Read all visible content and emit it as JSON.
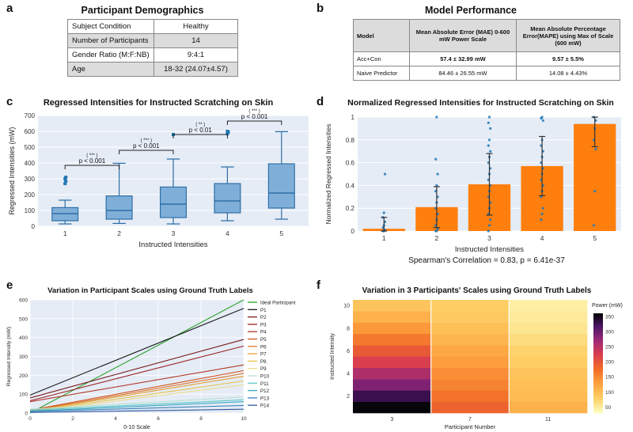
{
  "panels": {
    "a": "a",
    "b": "b",
    "c": "c",
    "d": "d",
    "e": "e",
    "f": "f"
  },
  "demographics": {
    "title": "Participant Demographics",
    "rows": [
      [
        "Subject Condition",
        "Healthy"
      ],
      [
        "Number of Participants",
        "14"
      ],
      [
        "Gender Ratio (M:F:NB)",
        "9:4:1"
      ],
      [
        "Age",
        "18-32 (24.07±4.57)"
      ]
    ]
  },
  "performance": {
    "title": "Model Performance",
    "headers": [
      "Model",
      "Mean Absolute Error (MAE) 0-600 mW Power Scale",
      "Mean Absolute Percentage Error(MAPE) using Max of Scale (600 mW)"
    ],
    "rows": [
      [
        "Acc+Con",
        "57.4 ± 32.99 mW",
        "9.57 ± 5.5%"
      ],
      [
        "Naive Predictor",
        "84.46 ± 26.55 mW",
        "14.08 ± 4.43%"
      ]
    ]
  },
  "spearman": "Spearman's Correlation = 0.83, p = 6.41e-37",
  "colors": {
    "plot_bg": "#e5ecf6",
    "box_fill": "#7fafd8",
    "box_line": "#2f6fa7",
    "orange": "#ff7f0e",
    "flier": "#1f77b4"
  },
  "chart_data": [
    {
      "id": "c",
      "type": "box",
      "title": "Regressed Intensities for Instructed Scratching on Skin",
      "xlabel": "Instructed Intensities",
      "ylabel": "Regressed Intensities (mW)",
      "categories": [
        "1",
        "2",
        "3",
        "4",
        "5"
      ],
      "ylim": [
        0,
        700
      ],
      "yticks": [
        0,
        100,
        200,
        300,
        400,
        500,
        600,
        700
      ],
      "boxes": [
        {
          "whislo": 15,
          "q1": 35,
          "med": 80,
          "q3": 118,
          "whishi": 165,
          "fliers": [
            270,
            285,
            300,
            310
          ]
        },
        {
          "whislo": 18,
          "q1": 45,
          "med": 100,
          "q3": 192,
          "whishi": 398,
          "fliers": []
        },
        {
          "whislo": 15,
          "q1": 55,
          "med": 140,
          "q3": 248,
          "whishi": 425,
          "fliers": [
            580
          ]
        },
        {
          "whislo": 35,
          "q1": 85,
          "med": 160,
          "q3": 270,
          "whishi": 375,
          "fliers": [
            585,
            595,
            600
          ]
        },
        {
          "whislo": 45,
          "q1": 115,
          "med": 210,
          "q3": 395,
          "whishi": 598,
          "fliers": []
        }
      ],
      "significance": [
        {
          "from": 1,
          "to": 2,
          "stars": "( *** )",
          "label": "p < 0.001",
          "y": 385
        },
        {
          "from": 2,
          "to": 3,
          "stars": "( *** )",
          "label": "p < 0.001",
          "y": 480
        },
        {
          "from": 3,
          "to": 4,
          "stars": "( ** )",
          "label": "p < 0.01",
          "y": 580
        },
        {
          "from": 4,
          "to": 5,
          "stars": "( *** )",
          "label": "p < 0.001",
          "y": 665
        }
      ]
    },
    {
      "id": "d",
      "type": "bar",
      "title": "Normalized Regressed Intensities for Instructed Scratching on Skin",
      "xlabel": "Instructed Intensities",
      "ylabel": "Normalized Regressed Intensities",
      "categories": [
        "1",
        "2",
        "3",
        "4",
        "5"
      ],
      "values": [
        0.02,
        0.21,
        0.41,
        0.57,
        0.94
      ],
      "errors": [
        0.1,
        0.18,
        0.27,
        0.26,
        0.2
      ],
      "ylim": [
        0,
        1
      ],
      "yticks": [
        0,
        0.2,
        0.4,
        0.6,
        0.8,
        1
      ],
      "points": [
        [
          0,
          0,
          0.01,
          0.03,
          0.05,
          0.08,
          0.12,
          0.16,
          0.5
        ],
        [
          0,
          0,
          0.02,
          0.05,
          0.1,
          0.15,
          0.2,
          0.25,
          0.3,
          0.35,
          0.4,
          0.5,
          0.63,
          1.0
        ],
        [
          0,
          0.05,
          0.1,
          0.15,
          0.2,
          0.25,
          0.3,
          0.35,
          0.4,
          0.45,
          0.5,
          0.55,
          0.6,
          0.65,
          0.7,
          0.75,
          0.8,
          0.9,
          0.95,
          1.0
        ],
        [
          0.1,
          0.15,
          0.2,
          0.3,
          0.35,
          0.4,
          0.45,
          0.5,
          0.55,
          0.6,
          0.65,
          0.7,
          0.75,
          0.8,
          0.97,
          0.99,
          1.0
        ],
        [
          0.05,
          0.35,
          0.72,
          0.8,
          0.9,
          0.97,
          1.0
        ]
      ]
    },
    {
      "id": "e",
      "type": "line",
      "title": "Variation in Participant Scales using Ground Truth Labels",
      "xlabel": "0-10 Scale",
      "ylabel": "Regressed Intensity (mW)",
      "xlim": [
        0,
        10
      ],
      "ylim": [
        0,
        600
      ],
      "xticks": [
        0,
        2,
        4,
        6,
        8,
        10
      ],
      "yticks": [
        0,
        100,
        200,
        300,
        400,
        500,
        600
      ],
      "legend_position": "right",
      "series": [
        {
          "name": "Ideal Participant",
          "color": "#2ca02c",
          "y0": 0,
          "y10": 600
        },
        {
          "name": "P1",
          "color": "#1a1a1a",
          "y0": 95,
          "y10": 555
        },
        {
          "name": "P2",
          "color": "#7a1c1c",
          "y0": 80,
          "y10": 390
        },
        {
          "name": "P3",
          "color": "#9b2222",
          "y0": 65,
          "y10": 355
        },
        {
          "name": "P4",
          "color": "#b23a2a",
          "y0": 60,
          "y10": 255
        },
        {
          "name": "P5",
          "color": "#d2531f",
          "y0": 15,
          "y10": 225
        },
        {
          "name": "P6",
          "color": "#e0762a",
          "y0": 12,
          "y10": 210
        },
        {
          "name": "P7",
          "color": "#e3a034",
          "y0": 10,
          "y10": 195
        },
        {
          "name": "P8",
          "color": "#e8c14a",
          "y0": 8,
          "y10": 170
        },
        {
          "name": "P9",
          "color": "#eedb8a",
          "y0": 5,
          "y10": 150
        },
        {
          "name": "P10",
          "color": "#b8e0d0",
          "y0": 20,
          "y10": 85
        },
        {
          "name": "P11",
          "color": "#5fc7c9",
          "y0": 15,
          "y10": 70
        },
        {
          "name": "P12",
          "color": "#3aa7c4",
          "y0": 10,
          "y10": 60
        },
        {
          "name": "P13",
          "color": "#3a7fb8",
          "y0": 8,
          "y10": 40
        },
        {
          "name": "P14",
          "color": "#2e5b9e",
          "y0": 3,
          "y10": 20
        }
      ]
    },
    {
      "id": "f",
      "type": "heatmap",
      "title": "Variation in 3 Participants' Scales using Ground Truth Labels",
      "xlabel": "Participant Number",
      "ylabel": "Instructed Intensity",
      "x": [
        "3",
        "7",
        "11"
      ],
      "y_ticks": [
        "2",
        "4",
        "6",
        "8",
        "10"
      ],
      "rows": 10,
      "values": [
        [
          360,
          185,
          110
        ],
        [
          330,
          170,
          100
        ],
        [
          290,
          155,
          95
        ],
        [
          260,
          145,
          90
        ],
        [
          225,
          130,
          80
        ],
        [
          195,
          120,
          75
        ],
        [
          165,
          105,
          65
        ],
        [
          135,
          95,
          55
        ],
        [
          110,
          85,
          50
        ],
        [
          90,
          80,
          45
        ]
      ],
      "colorbar_title": "Power (mW)",
      "colorbar_ticks": [
        50,
        100,
        150,
        200,
        250,
        300,
        350
      ],
      "zlim": [
        30,
        360
      ]
    }
  ]
}
